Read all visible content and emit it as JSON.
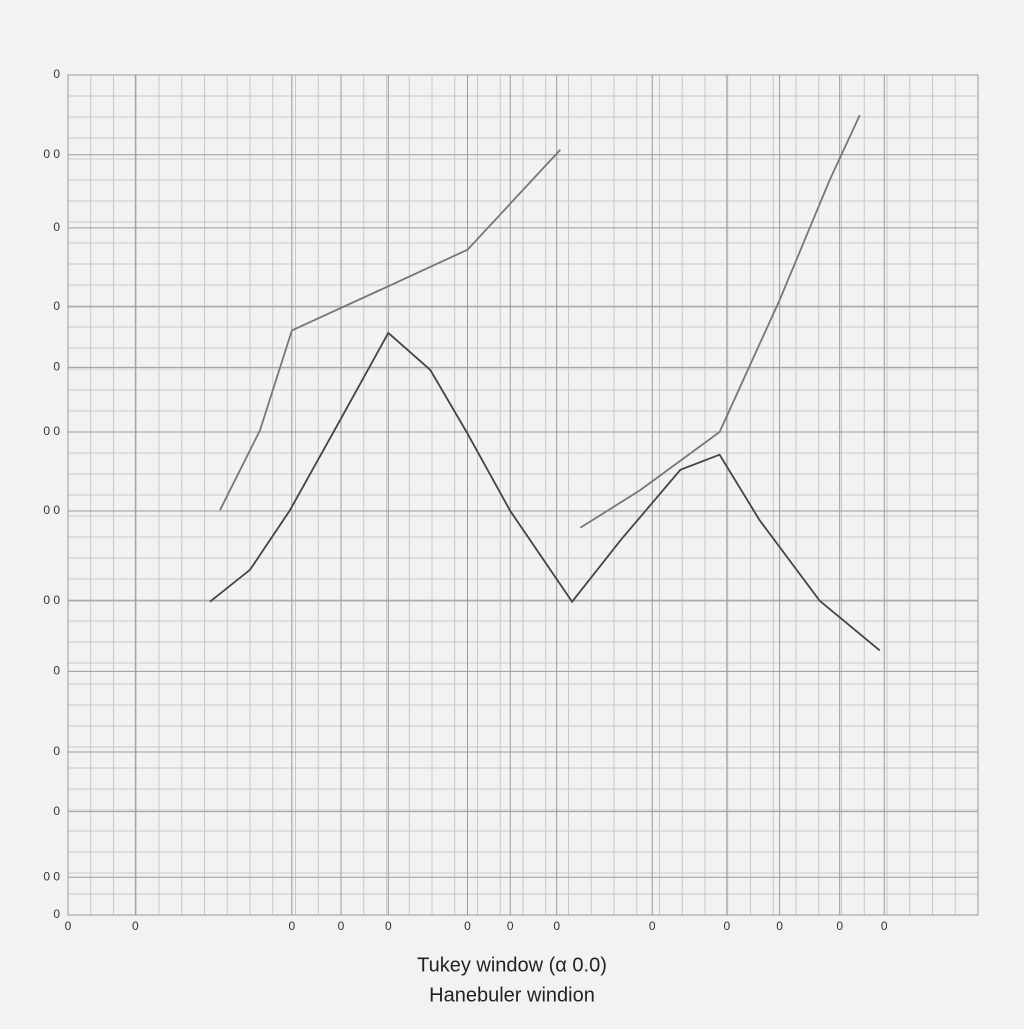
{
  "chart_data": {
    "type": "line",
    "legend": [
      "Tukey window (α 0.0)",
      "Hanebuler windion"
    ],
    "xlim": [
      0,
      1
    ],
    "ylim": [
      0,
      1
    ],
    "grid": true,
    "xticks": [
      {
        "value": 0,
        "label": "0"
      },
      {
        "value": 0.074,
        "label": "0"
      },
      {
        "value": 0.246,
        "label": "0"
      },
      {
        "value": 0.3,
        "label": "0"
      },
      {
        "value": 0.352,
        "label": "0"
      },
      {
        "value": 0.439,
        "label": "0"
      },
      {
        "value": 0.486,
        "label": "0"
      },
      {
        "value": 0.537,
        "label": "0"
      },
      {
        "value": 0.642,
        "label": "0"
      },
      {
        "value": 0.724,
        "label": "0"
      },
      {
        "value": 0.782,
        "label": "0"
      },
      {
        "value": 0.848,
        "label": "0"
      },
      {
        "value": 0.897,
        "label": "0"
      }
    ],
    "yticks": [
      {
        "value": 1,
        "label": "0"
      },
      {
        "value": 0.905,
        "label": "0 0"
      },
      {
        "value": 0.818,
        "label": "0"
      },
      {
        "value": 0.724,
        "label": "0"
      },
      {
        "value": 0.652,
        "label": "0"
      },
      {
        "value": 0.575,
        "label": "0 0"
      },
      {
        "value": 0.481,
        "label": "0 0"
      },
      {
        "value": 0.374,
        "label": "0 0"
      },
      {
        "value": 0.29,
        "label": "0"
      },
      {
        "value": 0.194,
        "label": "0"
      },
      {
        "value": 0.123,
        "label": "0"
      },
      {
        "value": 0.045,
        "label": "0 0"
      },
      {
        "value": 0,
        "label": "0"
      }
    ],
    "series": [
      {
        "name": "Tukey window (α 0.0)",
        "color": "#444444",
        "x": [
          0.156,
          0.2,
          0.244,
          0.299,
          0.352,
          0.398,
          0.438,
          0.486,
          0.554,
          0.607,
          0.673,
          0.716,
          0.76,
          0.826,
          0.892
        ],
        "values": [
          0.373,
          0.411,
          0.482,
          0.589,
          0.693,
          0.649,
          0.575,
          0.481,
          0.373,
          0.446,
          0.53,
          0.548,
          0.47,
          0.374,
          0.315
        ]
      },
      {
        "name": "Hanebuler windion",
        "color": "#777777",
        "x": [
          0.167,
          0.211,
          0.246,
          0.343,
          0.439,
          0.541,
          null,
          0.563,
          0.629,
          0.716,
          0.782,
          0.837,
          0.87
        ],
        "values": [
          0.482,
          0.577,
          0.696,
          0.744,
          0.792,
          0.911,
          null,
          0.461,
          0.506,
          0.575,
          0.732,
          0.875,
          0.952
        ]
      }
    ]
  }
}
